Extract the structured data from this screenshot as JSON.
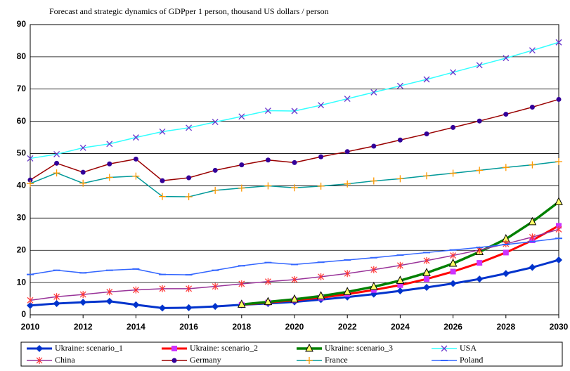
{
  "chart_data": {
    "type": "line",
    "title": "Forecast and strategic dynamics of GDPper 1 person, thousand US dollars / person",
    "x": [
      2010,
      2011,
      2012,
      2013,
      2014,
      2015,
      2016,
      2017,
      2018,
      2019,
      2020,
      2021,
      2022,
      2023,
      2024,
      2025,
      2026,
      2027,
      2028,
      2029,
      2030
    ],
    "xlim": [
      2010,
      2030
    ],
    "xticks": [
      2010,
      2012,
      2014,
      2016,
      2018,
      2020,
      2022,
      2024,
      2026,
      2028,
      2030
    ],
    "ylim": [
      0,
      90
    ],
    "yticks": [
      0,
      10,
      20,
      30,
      40,
      50,
      60,
      70,
      80,
      90
    ],
    "grid": true,
    "legend": "bottom",
    "series": [
      {
        "name": "Ukraine: scenario_1",
        "color": "#0033cc",
        "marker": "diamond",
        "marker_color": "#0033cc",
        "values": [
          2.9,
          3.5,
          3.9,
          4.2,
          3.1,
          2.1,
          2.2,
          2.6,
          3.1,
          3.5,
          4.0,
          4.7,
          5.5,
          6.4,
          7.4,
          8.5,
          9.7,
          11.1,
          12.8,
          14.7,
          17.0
        ]
      },
      {
        "name": "Ukraine: scenario_2",
        "color": "#ff0000",
        "marker": "square",
        "marker_color": "#cc33ff",
        "values": [
          null,
          null,
          null,
          null,
          null,
          null,
          null,
          null,
          3.1,
          3.8,
          4.5,
          5.3,
          6.4,
          7.7,
          9.2,
          11.1,
          13.4,
          16.1,
          19.3,
          23.1,
          27.6
        ]
      },
      {
        "name": "Ukraine: scenario_3",
        "color": "#008000",
        "marker": "triangle",
        "marker_color": "#ffff66",
        "values": [
          null,
          null,
          null,
          null,
          null,
          null,
          null,
          null,
          3.2,
          4.0,
          4.8,
          5.8,
          7.1,
          8.7,
          10.6,
          13.0,
          15.9,
          19.5,
          23.5,
          28.8,
          35.0
        ]
      },
      {
        "name": "USA",
        "color": "#33ffff",
        "marker": "x",
        "marker_color": "#6633cc",
        "values": [
          48.5,
          49.8,
          51.8,
          53.0,
          55.0,
          56.8,
          58.0,
          59.8,
          61.5,
          63.3,
          63.2,
          65.0,
          67.0,
          69.0,
          71.0,
          73.0,
          75.2,
          77.4,
          79.6,
          82.0,
          84.5
        ]
      },
      {
        "name": "China",
        "color": "#993399",
        "marker": "star",
        "marker_color": "#ff3333",
        "values": [
          4.5,
          5.6,
          6.3,
          7.1,
          7.7,
          8.1,
          8.1,
          8.8,
          9.6,
          10.3,
          10.9,
          11.8,
          12.8,
          14.0,
          15.3,
          16.8,
          18.4,
          20.1,
          22.0,
          24.1,
          26.5
        ]
      },
      {
        "name": "Germany",
        "color": "#990000",
        "marker": "circle",
        "marker_color": "#330099",
        "values": [
          41.8,
          47.0,
          44.2,
          46.8,
          48.3,
          41.6,
          42.5,
          44.8,
          46.5,
          48.0,
          47.2,
          49.0,
          50.6,
          52.3,
          54.2,
          56.1,
          58.1,
          60.1,
          62.2,
          64.4,
          66.8
        ]
      },
      {
        "name": "France",
        "color": "#009999",
        "marker": "plus",
        "marker_color": "#ff9900",
        "values": [
          40.7,
          44.0,
          40.8,
          42.6,
          43.0,
          36.7,
          36.6,
          38.6,
          39.3,
          40.0,
          39.4,
          39.9,
          40.6,
          41.5,
          42.2,
          43.1,
          43.9,
          44.8,
          45.7,
          46.5,
          47.5
        ]
      },
      {
        "name": "Poland",
        "color": "#3366ff",
        "marker": "dash",
        "marker_color": "#3366ff",
        "values": [
          12.5,
          13.8,
          13.0,
          13.8,
          14.2,
          12.5,
          12.4,
          13.8,
          15.2,
          16.2,
          15.6,
          16.3,
          17.0,
          17.7,
          18.5,
          19.3,
          20.1,
          20.9,
          21.8,
          22.7,
          23.7
        ]
      }
    ]
  }
}
